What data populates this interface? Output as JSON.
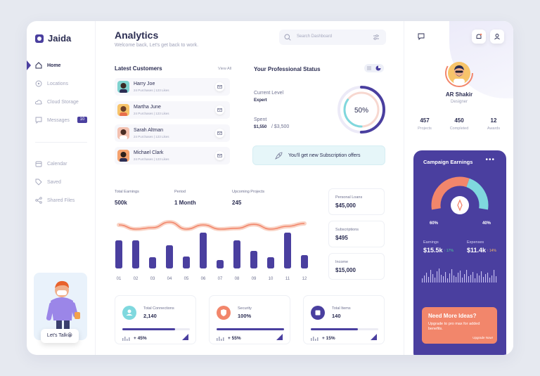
{
  "app": {
    "name": "Jaida"
  },
  "sidebar": {
    "items": [
      {
        "label": "Home",
        "icon": "home-icon",
        "active": true
      },
      {
        "label": "Locations",
        "icon": "compass-icon"
      },
      {
        "label": "Cloud Storage",
        "icon": "cloud-icon"
      },
      {
        "label": "Messages",
        "icon": "chat-icon",
        "badge": "10"
      },
      {
        "label": "Calendar",
        "icon": "calendar-icon"
      },
      {
        "label": "Saved",
        "icon": "tag-icon"
      },
      {
        "label": "Shared Files",
        "icon": "share-icon"
      }
    ],
    "promo_button": "Let's Talk😀"
  },
  "header": {
    "title": "Analytics",
    "subtitle": "Welcome back, Let's get back to work.",
    "search_placeholder": "Search Dashboard"
  },
  "customers": {
    "title": "Latest Customers",
    "view_all": "View All",
    "items": [
      {
        "name": "Harry Joe",
        "meta": "24 Purchases  |  123 Likes",
        "color": "#7fd3cf"
      },
      {
        "name": "Martha June",
        "meta": "24 Purchases  |  123 Likes",
        "color": "#f7c46a"
      },
      {
        "name": "Sarah Altman",
        "meta": "24 Purchases  |  123 Likes",
        "color": "#f3c1b0"
      },
      {
        "name": "Michael Clark",
        "meta": "24 Purchases  |  123 Likes",
        "color": "#f5a26e"
      }
    ]
  },
  "status": {
    "title": "Your Professional Status",
    "level_label": "Current Level",
    "level_value": "Expert",
    "spent_label": "Spent",
    "spent_value": "$1,550",
    "spent_total": "/ $3,500",
    "ring_percent": "50%",
    "ring_fraction": 0.5,
    "banner": "You'll get new Subscription offers"
  },
  "stats": {
    "total_earnings_label": "Total Earnings",
    "total_earnings_value": "500k",
    "period_label": "Period",
    "period_value": "1 Month",
    "upcoming_label": "Upcoming Projects",
    "upcoming_value": "245"
  },
  "chart_data": {
    "type": "bar",
    "categories": [
      "01",
      "02",
      "03",
      "04",
      "05",
      "06",
      "07",
      "08",
      "09",
      "10",
      "11",
      "12"
    ],
    "values": [
      40,
      40,
      16,
      33,
      17,
      51,
      12,
      40,
      25,
      16,
      51,
      19
    ],
    "line": [
      60,
      45,
      50,
      70,
      45,
      60,
      45,
      48,
      62,
      45,
      55,
      65
    ]
  },
  "side_cards": [
    {
      "label": "Personal Loans",
      "value": "$45,000"
    },
    {
      "label": "Subscriptions",
      "value": "$495"
    },
    {
      "label": "Income",
      "value": "$15,000"
    }
  ],
  "bottom_cards": [
    {
      "label": "Total Connections",
      "value": "2,140",
      "delta": "+ 45%",
      "progress": 0.95,
      "color": "#7fd8de"
    },
    {
      "label": "Security",
      "value": "100%",
      "delta": "+ 55%",
      "progress": 1.0,
      "color": "#f2866b"
    },
    {
      "label": "Total Items",
      "value": "140",
      "delta": "+ 15%",
      "progress": 0.7,
      "color": "#4a3f9f"
    }
  ],
  "profile": {
    "name": "AR Shakir",
    "role": "Designer",
    "stats": [
      {
        "value": "457",
        "label": "Projects"
      },
      {
        "value": "450",
        "label": "Completed"
      },
      {
        "value": "12",
        "label": "Awards"
      }
    ]
  },
  "campaign": {
    "title": "Campaign Earnings",
    "left_pct": "60%",
    "right_pct": "40%",
    "left_fraction": 0.6,
    "earnings_label": "Earnings",
    "earnings_value": "$15.5k",
    "earnings_delta": "↑ 17%",
    "expenses_label": "Expenses",
    "expenses_value": "$11.4k",
    "expenses_delta": "↑ 14%"
  },
  "ideas": {
    "title": "Need More Ideas?",
    "text": "Upgrade to pro max for added benefits.",
    "button": "Upgrade Now!"
  }
}
